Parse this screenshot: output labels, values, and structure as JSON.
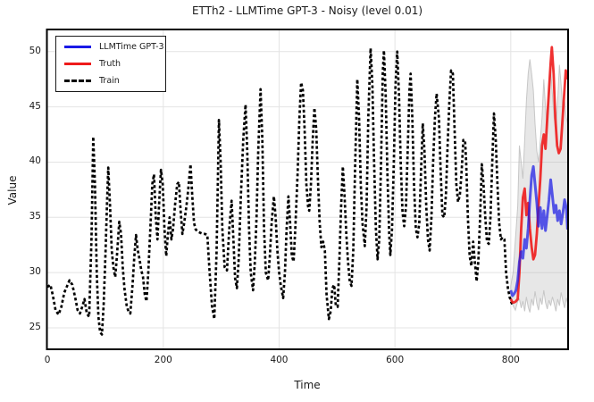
{
  "title": "ETTh2 - LLMTime GPT-3 - Noisy (level 0.01)",
  "chart_data": {
    "type": "line",
    "title": "ETTh2 - LLMTime GPT-3 - Noisy (level 0.01)",
    "xlabel": "Time",
    "ylabel": "Value",
    "grid": true,
    "axes": {
      "xlim": [
        -1,
        899
      ],
      "ylim": [
        23.06,
        52.0
      ],
      "xticks": [
        0,
        200,
        400,
        600,
        800
      ],
      "yticks": [
        25,
        30,
        35,
        40,
        45,
        50
      ]
    },
    "legend": {
      "position": "upper-left",
      "items": [
        {
          "label": "LLMTime GPT-3",
          "color": "#1a1ae6",
          "style": "solid"
        },
        {
          "label": "Truth",
          "color": "#ee1b1b",
          "style": "solid"
        },
        {
          "label": "Train",
          "color": "#000000",
          "style": "dashed"
        }
      ]
    },
    "band": {
      "name": "prediction-interval",
      "fill": "#aaaaaa",
      "edge": "#bbbbbb",
      "x": [
        800,
        804,
        808,
        812,
        815,
        818,
        821,
        824,
        827,
        830,
        833,
        836,
        839,
        842,
        845,
        848,
        851,
        854,
        857,
        860,
        863,
        866,
        869,
        872,
        875,
        878,
        881,
        884,
        887,
        890,
        893,
        896,
        898
      ],
      "upper": [
        28.8,
        30.0,
        33.0,
        36.0,
        41.5,
        40.0,
        38.5,
        42.0,
        45.5,
        48.0,
        49.3,
        48.0,
        46.5,
        43.5,
        41.0,
        40.0,
        42.0,
        44.0,
        47.5,
        45.0,
        43.0,
        46.0,
        48.5,
        46.0,
        44.0,
        43.0,
        45.5,
        48.8,
        47.0,
        44.5,
        45.5,
        44.0,
        43.5
      ],
      "lower": [
        28.0,
        27.0,
        26.6,
        27.4,
        27.6,
        26.8,
        27.4,
        26.5,
        27.8,
        26.9,
        26.4,
        27.6,
        27.0,
        28.3,
        27.2,
        26.6,
        27.7,
        27.1,
        28.4,
        27.3,
        26.7,
        27.5,
        27.0,
        27.8,
        27.2,
        26.5,
        27.6,
        27.0,
        28.2,
        27.4,
        26.8,
        27.7,
        27.2
      ]
    },
    "series": [
      {
        "name": "Train",
        "color": "#000000",
        "dash": true,
        "width": 2.7,
        "opacity": 1,
        "x": [
          0,
          5,
          9,
          14,
          19,
          24,
          29,
          34,
          38,
          43,
          48,
          52,
          56,
          60,
          64,
          68,
          72,
          76,
          79,
          82,
          85,
          88,
          91,
          94,
          97,
          100,
          103,
          105,
          108,
          111,
          114,
          117,
          120,
          124,
          127,
          130,
          133,
          137,
          140,
          143,
          147,
          150,
          153,
          156,
          159,
          162,
          165,
          168,
          171,
          174,
          178,
          181,
          184,
          187,
          190,
          193,
          196,
          199,
          202,
          205,
          208,
          211,
          214,
          217,
          220,
          224,
          227,
          230,
          233,
          236,
          240,
          243,
          247,
          250,
          253,
          256,
          260,
          264,
          268,
          272,
          276,
          280,
          284,
          288,
          292,
          296,
          299,
          302,
          306,
          310,
          314,
          318,
          321,
          324,
          327,
          330,
          334,
          338,
          342,
          345,
          348,
          351,
          355,
          358,
          361,
          364,
          368,
          371,
          374,
          377,
          381,
          384,
          387,
          391,
          394,
          397,
          400,
          403,
          407,
          410,
          413,
          416,
          419,
          422,
          425,
          428,
          432,
          435,
          438,
          441,
          444,
          447,
          450,
          452,
          455,
          458,
          461,
          464,
          467,
          470,
          473,
          476,
          479,
          482,
          486,
          489,
          492,
          495,
          498,
          501,
          504,
          507,
          510,
          513,
          516,
          519,
          522,
          525,
          528,
          531,
          535,
          538,
          541,
          544,
          548,
          551,
          554,
          558,
          561,
          564,
          567,
          570,
          573,
          576,
          579,
          581,
          584,
          587,
          590,
          592,
          595,
          598,
          601,
          604,
          607,
          610,
          613,
          616,
          619,
          622,
          625,
          627,
          630,
          633,
          636,
          639,
          642,
          645,
          648,
          651,
          654,
          657,
          660,
          663,
          666,
          669,
          672,
          676,
          679,
          682,
          685,
          688,
          691,
          694,
          697,
          700,
          703,
          706,
          709,
          712,
          715,
          718,
          721,
          723,
          726,
          729,
          732,
          735,
          738,
          741,
          744,
          747,
          750,
          753,
          756,
          759,
          762,
          765,
          768,
          771,
          774,
          777,
          780,
          783,
          786,
          789,
          792,
          795,
          798,
          801,
          804
        ],
        "y": [
          28.7,
          28.9,
          28.0,
          26.6,
          26.2,
          26.9,
          28.2,
          28.8,
          29.3,
          28.9,
          27.7,
          26.6,
          26.3,
          26.9,
          27.6,
          26.3,
          26.0,
          33.0,
          42.3,
          38.0,
          30.0,
          26.0,
          24.6,
          24.4,
          27.0,
          31.5,
          36.5,
          39.5,
          36.0,
          32.0,
          30.4,
          29.6,
          31.5,
          34.6,
          33.5,
          30.5,
          28.5,
          26.9,
          26.5,
          26.3,
          29.0,
          31.5,
          33.4,
          32.0,
          31.2,
          30.2,
          29.6,
          28.0,
          27.4,
          30.0,
          34.5,
          38.0,
          38.9,
          35.0,
          33.0,
          36.5,
          39.3,
          38.0,
          34.0,
          31.5,
          33.5,
          35.0,
          33.0,
          34.0,
          36.0,
          38.0,
          38.2,
          35.5,
          33.5,
          34.5,
          36.0,
          37.5,
          39.8,
          37.0,
          34.5,
          33.9,
          33.7,
          33.6,
          33.5,
          33.5,
          33.4,
          30.0,
          27.0,
          25.8,
          32.0,
          43.8,
          40.0,
          34.0,
          30.5,
          30.2,
          34.0,
          36.5,
          33.0,
          29.5,
          28.6,
          31.0,
          37.0,
          42.0,
          45.2,
          41.0,
          34.0,
          30.0,
          28.4,
          31.0,
          35.0,
          41.0,
          46.6,
          42.0,
          34.0,
          30.0,
          29.3,
          31.5,
          34.5,
          36.9,
          35.0,
          32.0,
          30.0,
          28.8,
          27.7,
          30.0,
          34.0,
          36.9,
          34.5,
          31.5,
          31.0,
          34.0,
          39.0,
          44.0,
          47.2,
          46.5,
          43.0,
          38.0,
          36.0,
          35.6,
          38.0,
          42.0,
          44.9,
          43.0,
          38.5,
          34.5,
          32.3,
          32.8,
          32.0,
          28.0,
          25.8,
          26.5,
          28.6,
          28.9,
          27.0,
          26.9,
          31.0,
          36.0,
          39.6,
          37.0,
          33.5,
          31.0,
          29.2,
          28.8,
          32.0,
          39.0,
          47.5,
          44.0,
          38.0,
          34.5,
          32.4,
          36.0,
          44.0,
          50.3,
          47.0,
          40.0,
          34.0,
          31.2,
          33.0,
          40.0,
          48.0,
          50.1,
          46.0,
          39.0,
          33.5,
          31.6,
          34.0,
          40.0,
          47.0,
          50.0,
          46.0,
          40.0,
          35.5,
          34.2,
          36.0,
          41.0,
          46.5,
          48.0,
          44.0,
          38.0,
          34.0,
          33.2,
          34.5,
          39.0,
          43.5,
          41.0,
          36.0,
          33.0,
          32.0,
          35.0,
          40.0,
          44.0,
          46.2,
          44.0,
          39.0,
          35.2,
          35.0,
          37.0,
          41.5,
          45.5,
          48.3,
          48.0,
          43.0,
          38.0,
          36.4,
          37.0,
          39.0,
          42.0,
          42.0,
          40.0,
          35.0,
          31.5,
          30.6,
          32.8,
          31.0,
          29.2,
          31.0,
          35.0,
          39.8,
          38.0,
          35.0,
          32.8,
          32.6,
          35.0,
          40.0,
          44.4,
          42.0,
          38.0,
          34.5,
          33.0,
          33.2,
          33.0,
          30.0,
          28.6,
          27.8,
          27.3,
          27.0
        ]
      },
      {
        "name": "Truth",
        "color": "#ee1b1b",
        "dash": false,
        "width": 2.8,
        "opacity": 0.9,
        "x": [
          800,
          803,
          806,
          809,
          812,
          815,
          818,
          821,
          824,
          827,
          830,
          833,
          836,
          839,
          842,
          845,
          848,
          851,
          854,
          857,
          860,
          863,
          866,
          869,
          871,
          874,
          877,
          880,
          883,
          886,
          889,
          892,
          895,
          898
        ],
        "y": [
          27.6,
          27.3,
          27.3,
          27.4,
          27.6,
          30.0,
          34.0,
          36.8,
          37.6,
          35.2,
          36.3,
          34.0,
          32.3,
          31.2,
          31.6,
          33.5,
          36.0,
          38.5,
          41.5,
          42.5,
          41.2,
          44.0,
          46.5,
          49.0,
          50.4,
          48.0,
          44.0,
          41.5,
          40.8,
          41.2,
          43.5,
          46.0,
          48.3,
          47.5
        ]
      },
      {
        "name": "LLMTime GPT-3",
        "color": "#1a1ae6",
        "dash": false,
        "width": 3,
        "opacity": 0.72,
        "x": [
          800,
          803,
          806,
          809,
          812,
          815,
          818,
          821,
          824,
          827,
          830,
          833,
          836,
          839,
          842,
          845,
          848,
          851,
          854,
          857,
          860,
          863,
          866,
          869,
          872,
          875,
          878,
          881,
          884,
          887,
          890,
          893,
          896,
          898
        ],
        "y": [
          28.4,
          27.9,
          28.1,
          28.4,
          29.3,
          31.0,
          31.9,
          31.3,
          33.0,
          32.2,
          34.0,
          36.5,
          38.8,
          39.6,
          38.0,
          36.3,
          34.2,
          35.9,
          34.0,
          35.6,
          33.8,
          35.2,
          36.6,
          38.4,
          36.9,
          35.4,
          36.1,
          34.7,
          35.6,
          34.4,
          35.4,
          36.6,
          35.8,
          33.9
        ]
      }
    ]
  }
}
